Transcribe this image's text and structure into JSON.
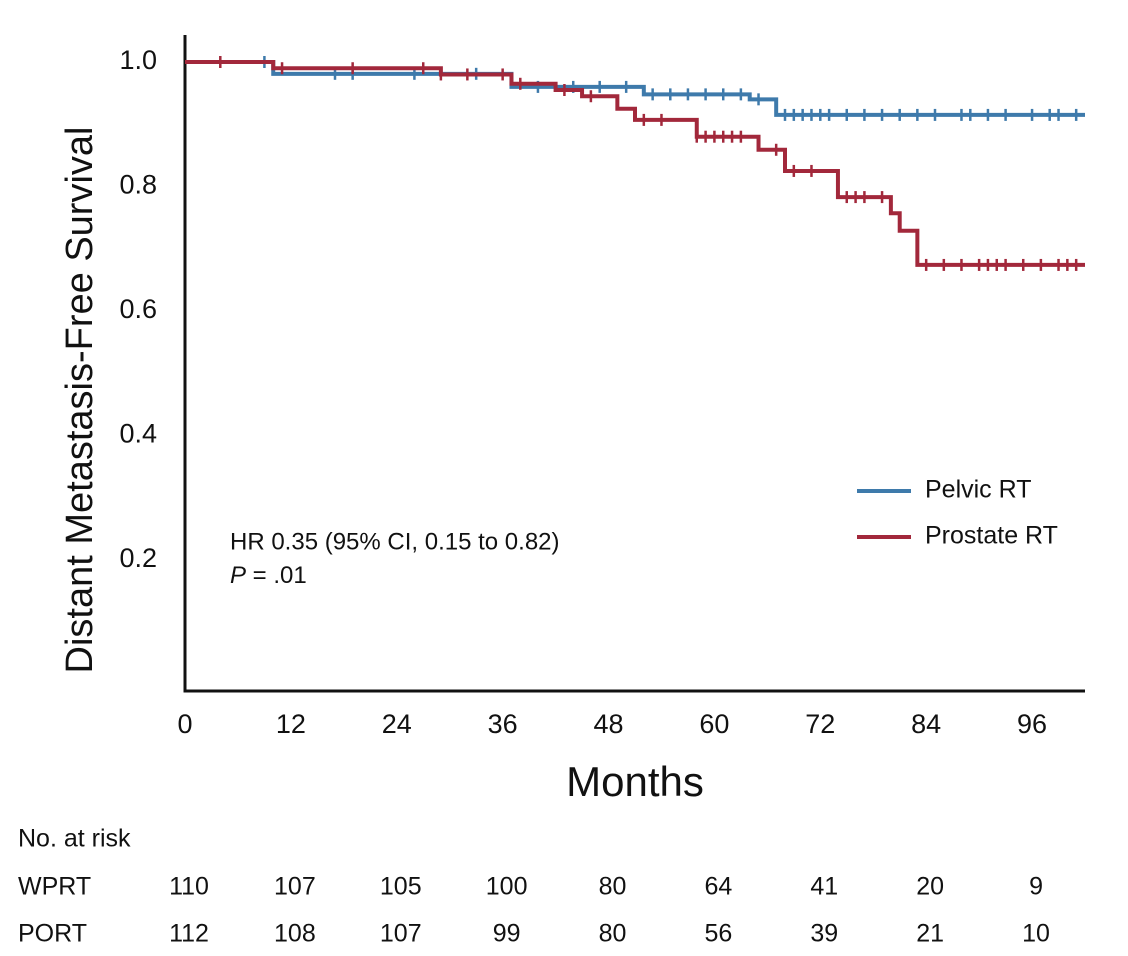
{
  "chart_data": {
    "type": "step",
    "y_label": "Distant Metastasis-Free Survival",
    "x_label": "Months",
    "xlim": [
      0,
      102
    ],
    "ylim": [
      0,
      1
    ],
    "xticks": [
      0,
      12,
      24,
      36,
      48,
      60,
      72,
      84,
      96
    ],
    "yticks": [
      0.2,
      0.4,
      0.6,
      0.8,
      {
        "value": 1,
        "label": "1.0"
      }
    ],
    "legend": "right",
    "annotation": {
      "line1": "HR 0.35 (95% CI, 0.15 to 0.82)",
      "italic": "P",
      "line2": " = .01"
    },
    "series": [
      {
        "name": "Pelvic RT",
        "color": "#3e7aab",
        "x": [
          0,
          10,
          37,
          52,
          64,
          67
        ],
        "values": [
          1.0,
          0.981,
          0.96,
          0.948,
          0.94,
          0.915
        ],
        "censor_x": [
          9,
          17,
          19,
          26,
          33,
          40,
          44,
          47,
          50,
          53,
          55,
          57,
          59,
          61,
          63,
          65,
          68,
          69,
          70,
          71,
          72,
          73,
          75,
          77,
          79,
          81,
          83,
          85,
          88,
          89,
          91,
          93,
          96,
          98,
          99,
          101
        ]
      },
      {
        "name": "Prostate RT",
        "color": "#a2283b",
        "x": [
          0,
          10,
          29,
          37,
          42,
          45,
          49,
          51,
          58,
          65,
          68,
          74,
          80,
          81,
          83
        ],
        "values": [
          1.0,
          0.99,
          0.98,
          0.965,
          0.955,
          0.945,
          0.925,
          0.907,
          0.88,
          0.859,
          0.825,
          0.783,
          0.757,
          0.729,
          0.674
        ],
        "censor_x": [
          4,
          11,
          19,
          27,
          29,
          32,
          36,
          38,
          43,
          46,
          52,
          54,
          58,
          59,
          60,
          61,
          62,
          63,
          67,
          69,
          71,
          75,
          76,
          77,
          79,
          84,
          86,
          88,
          90,
          91,
          92,
          93,
          95,
          97,
          99,
          100,
          101
        ]
      }
    ],
    "risk_table": {
      "title": "No. at risk",
      "rows": [
        {
          "label": "WPRT",
          "values": [
            110,
            107,
            105,
            100,
            80,
            64,
            41,
            20,
            9
          ]
        },
        {
          "label": "PORT",
          "values": [
            112,
            108,
            107,
            99,
            80,
            56,
            39,
            21,
            10
          ]
        }
      ]
    }
  }
}
